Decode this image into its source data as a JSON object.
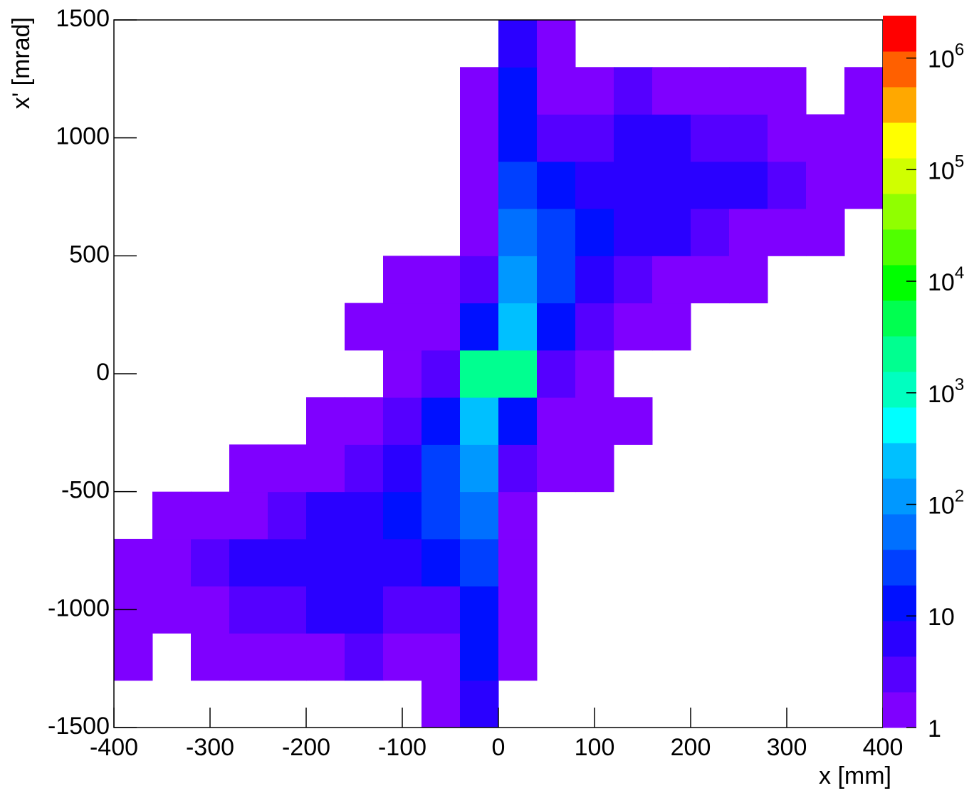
{
  "chart_data": {
    "type": "heatmap",
    "x_label": "x [mm]",
    "y_label": "x' [mrad]",
    "xbins": [
      -400,
      -360,
      -320,
      -280,
      -240,
      -200,
      -160,
      -120,
      -80,
      -40,
      0,
      40,
      80,
      120,
      160,
      200,
      240,
      280,
      320,
      360,
      400
    ],
    "ybins": [
      -1500,
      -1300,
      -1100,
      -900,
      -700,
      -500,
      -300,
      -100,
      100,
      300,
      500,
      700,
      900,
      1100,
      1300,
      1500
    ],
    "values": [
      [
        0,
        0,
        0,
        0,
        0,
        0,
        0,
        0,
        1,
        8,
        0,
        0,
        0,
        0,
        0,
        0,
        0,
        0,
        0,
        0
      ],
      [
        1,
        0,
        1,
        1,
        1,
        1,
        3,
        2,
        1,
        10,
        1,
        0,
        0,
        0,
        0,
        0,
        0,
        0,
        0,
        0
      ],
      [
        1,
        2,
        2,
        3,
        3,
        5,
        5,
        4,
        3,
        15,
        1,
        0,
        0,
        0,
        0,
        0,
        0,
        0,
        0,
        0
      ],
      [
        1,
        2,
        3,
        5,
        6,
        6,
        6,
        8,
        10,
        30,
        1,
        0,
        0,
        0,
        0,
        0,
        0,
        0,
        0,
        0
      ],
      [
        0,
        1,
        1,
        2,
        4,
        6,
        8,
        12,
        20,
        60,
        2,
        0,
        0,
        0,
        0,
        0,
        0,
        0,
        0,
        0
      ],
      [
        0,
        0,
        0,
        1,
        1,
        2,
        4,
        8,
        20,
        100,
        3,
        1,
        1,
        0,
        0,
        0,
        0,
        0,
        0,
        0
      ],
      [
        0,
        0,
        0,
        0,
        0,
        1,
        1,
        3,
        10,
        300,
        10,
        2,
        1,
        1,
        0,
        0,
        0,
        0,
        0,
        0
      ],
      [
        0,
        0,
        0,
        0,
        0,
        0,
        0,
        1,
        3,
        2000,
        2000,
        3,
        1,
        0,
        0,
        0,
        0,
        0,
        0,
        0
      ],
      [
        0,
        0,
        0,
        0,
        0,
        0,
        1,
        1,
        2,
        10,
        300,
        10,
        3,
        1,
        1,
        0,
        0,
        0,
        0,
        0
      ],
      [
        0,
        0,
        0,
        0,
        0,
        0,
        0,
        1,
        1,
        3,
        100,
        20,
        8,
        4,
        2,
        1,
        1,
        0,
        0,
        0
      ],
      [
        0,
        0,
        0,
        0,
        0,
        0,
        0,
        0,
        0,
        2,
        60,
        20,
        12,
        8,
        6,
        4,
        2,
        1,
        1,
        0
      ],
      [
        0,
        0,
        0,
        0,
        0,
        0,
        0,
        0,
        0,
        1,
        30,
        10,
        8,
        6,
        6,
        6,
        5,
        3,
        2,
        1
      ],
      [
        0,
        0,
        0,
        0,
        0,
        0,
        0,
        0,
        0,
        1,
        15,
        3,
        4,
        5,
        5,
        3,
        3,
        2,
        2,
        1
      ],
      [
        0,
        0,
        0,
        0,
        0,
        0,
        0,
        0,
        0,
        1,
        10,
        1,
        2,
        3,
        1,
        1,
        1,
        1,
        0,
        1
      ],
      [
        0,
        0,
        0,
        0,
        0,
        0,
        0,
        0,
        0,
        0,
        8,
        1,
        0,
        0,
        0,
        0,
        0,
        0,
        0,
        0
      ]
    ],
    "xlim": [
      -400,
      400
    ],
    "ylim": [
      -1500,
      1500
    ],
    "xticks": [
      -400,
      -300,
      -200,
      -100,
      0,
      100,
      200,
      300,
      400
    ],
    "yticks": [
      -1500,
      -1000,
      -500,
      0,
      500,
      1000,
      1500
    ],
    "zlim": [
      1,
      2400000
    ],
    "z_log": true,
    "zticks": [
      1,
      10,
      {
        "value": 100,
        "label": "10^2"
      },
      {
        "value": 1000,
        "label": "10^3"
      },
      {
        "value": 10000,
        "label": "10^4"
      },
      {
        "value": 100000,
        "label": "10^5"
      },
      {
        "value": 1000000,
        "label": "10^6"
      }
    ],
    "palette": [
      "#7f00ff",
      "#5500ff",
      "#2a00ff",
      "#0010ff",
      "#0040ff",
      "#0070ff",
      "#0098ff",
      "#00c0ff",
      "#00ffff",
      "#00ffc0",
      "#00ff90",
      "#00ff50",
      "#00ff00",
      "#50ff00",
      "#90ff00",
      "#d0ff00",
      "#ffff00",
      "#ffa800",
      "#ff6000",
      "#ff0000"
    ]
  }
}
